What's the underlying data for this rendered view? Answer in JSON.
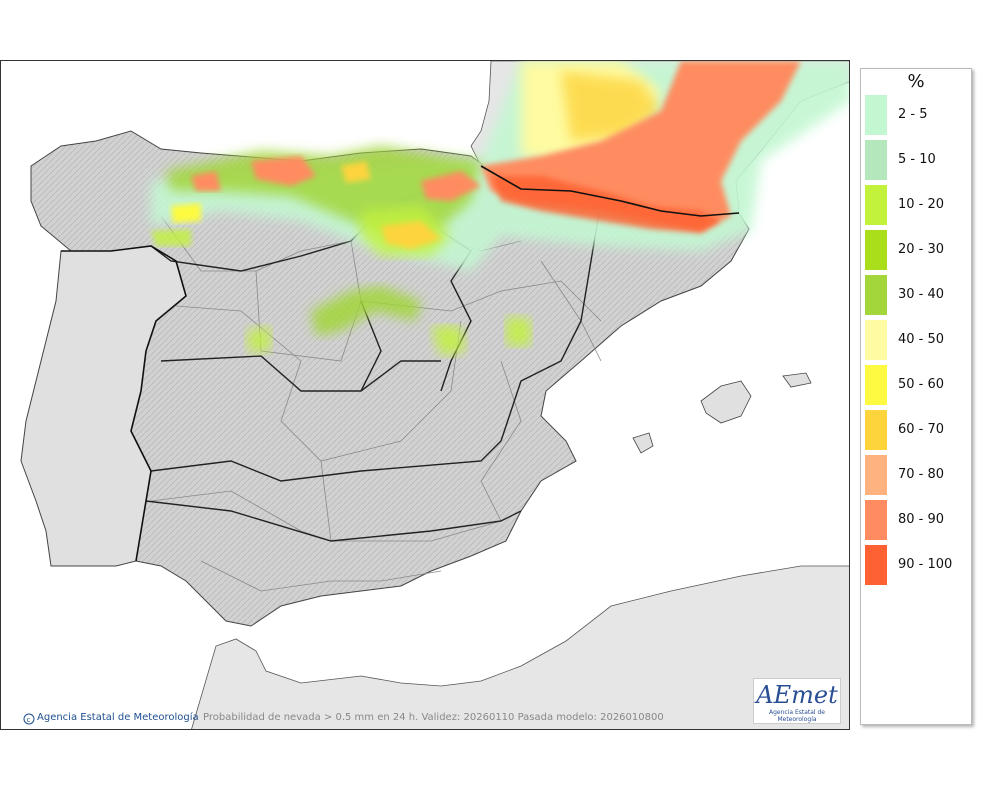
{
  "legend": {
    "unit": "%",
    "items": [
      {
        "label": "2 - 5",
        "color": "#c3f7d2"
      },
      {
        "label": "5 - 10",
        "color": "#b4e8bc"
      },
      {
        "label": "10 - 20",
        "color": "#c3f23c"
      },
      {
        "label": "20 - 30",
        "color": "#aade1a"
      },
      {
        "label": "30 - 40",
        "color": "#a2d63b"
      },
      {
        "label": "40 - 50",
        "color": "#fefba2"
      },
      {
        "label": "50 - 60",
        "color": "#fdfa41"
      },
      {
        "label": "60 - 70",
        "color": "#fdd43c"
      },
      {
        "label": "70 - 80",
        "color": "#feb280"
      },
      {
        "label": "80 - 90",
        "color": "#fe8c60"
      },
      {
        "label": "90 - 100",
        "color": "#fe6232"
      }
    ]
  },
  "map": {
    "copyright": "Agencia Estatal de Meteorología",
    "caption": "Probabilidad de nevada > 0.5 mm en 24 h. Validez: 20260110 Pasada modelo: 2026010800",
    "logo_text": "AEmet",
    "logo_subtitle": "Agencia Estatal de Meteorología"
  }
}
